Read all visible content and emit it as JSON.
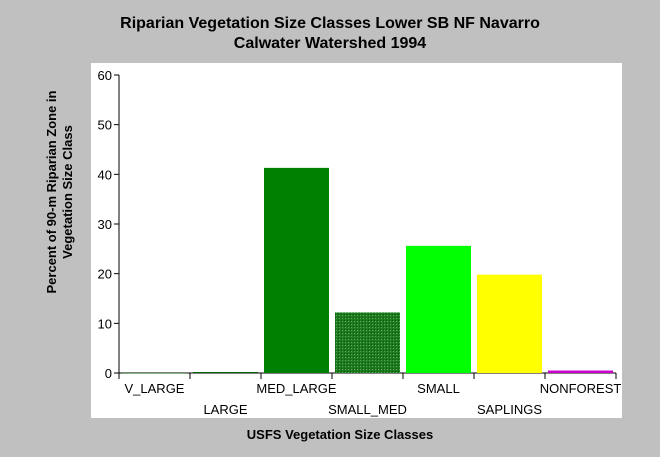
{
  "chart_data": {
    "type": "bar",
    "title_line1": "Riparian Vegetation Size Classes Lower SB NF Navarro",
    "title_line2": "Calwater Watershed 1994",
    "xlabel": "USFS Vegetation Size Classes",
    "ylabel": "Percent of 90-m Riparian Zone in Vegetation Size Class",
    "categories": [
      "V_LARGE",
      "LARGE",
      "MED_LARGE",
      "SMALL_MED",
      "SMALL",
      "SAPLINGS",
      "NONFOREST"
    ],
    "values": [
      0,
      0.2,
      41.3,
      12.2,
      25.6,
      19.8,
      0.5
    ],
    "colors": [
      "#006400",
      "#006400",
      "#008000",
      "#2e8b2e",
      "#00ff00",
      "#ffff00",
      "#cc00cc"
    ],
    "patterned": [
      false,
      false,
      false,
      true,
      false,
      false,
      false
    ],
    "ylim": [
      0,
      60
    ],
    "yticks": [
      0,
      10,
      20,
      30,
      40,
      50,
      60
    ],
    "grid": false,
    "legend": "none"
  }
}
